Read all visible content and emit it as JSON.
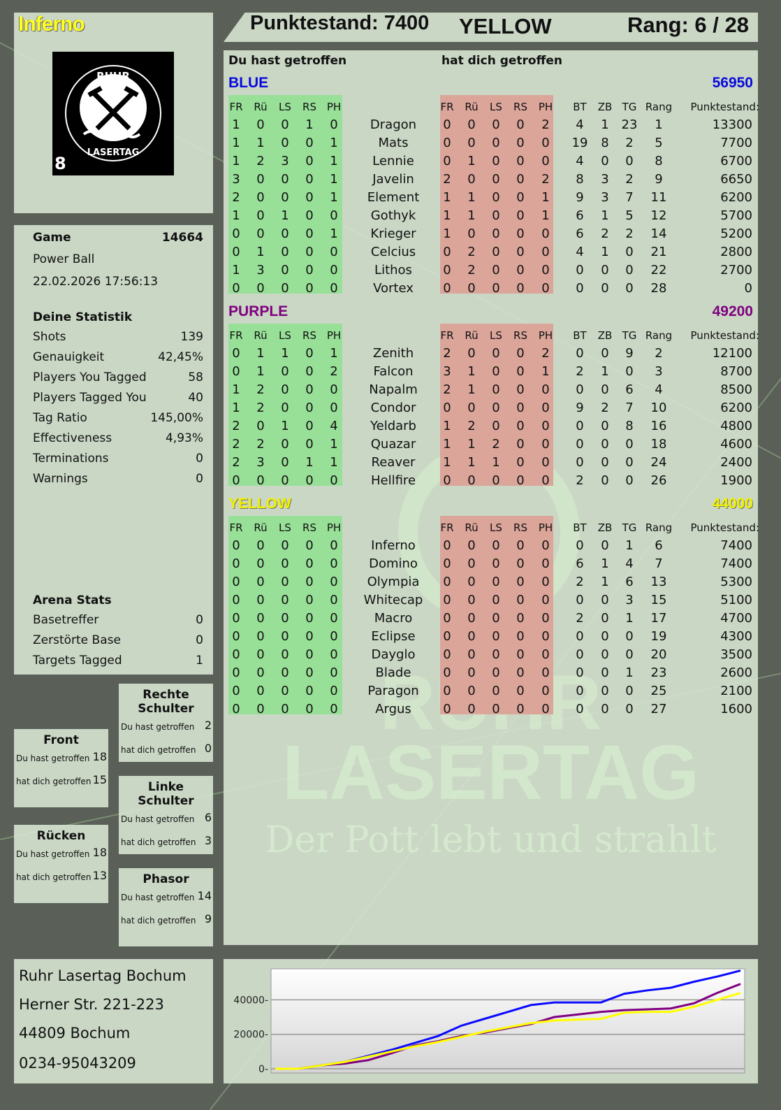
{
  "player": {
    "name": "Inferno",
    "score_label": "Punktestand: 7400",
    "team": "YELLOW",
    "rank_label": "Rang: 6 / 28",
    "logo_text": "RUHR LASERTAG",
    "logo_number": "8"
  },
  "headings": {
    "you_hit": "Du hast getroffen",
    "hit_you": "hat dich getroffen"
  },
  "game": {
    "label": "Game",
    "id": "14664",
    "mode": "Power Ball",
    "datetime": "22.02.2026 17:56:13"
  },
  "stats": {
    "title": "Deine Statistik",
    "items": [
      {
        "label": "Shots",
        "value": "139"
      },
      {
        "label": "Genauigkeit",
        "value": "42,45%"
      },
      {
        "label": "Players You Tagged",
        "value": "58"
      },
      {
        "label": "Players Tagged You",
        "value": "40"
      },
      {
        "label": "Tag Ratio",
        "value": "145,00%"
      },
      {
        "label": "Effectiveness",
        "value": "4,93%"
      },
      {
        "label": "Terminations",
        "value": "0"
      },
      {
        "label": "Warnings",
        "value": "0"
      }
    ]
  },
  "arena": {
    "title": "Arena Stats",
    "items": [
      {
        "label": "Basetreffer",
        "value": "0"
      },
      {
        "label": "Zerstörte Base",
        "value": "0"
      },
      {
        "label": "Targets Tagged",
        "value": "1"
      }
    ]
  },
  "zones": [
    {
      "title": "Rechte Schulter",
      "you_hit": "2",
      "hit_you": "0"
    },
    {
      "title": "Front",
      "you_hit": "18",
      "hit_you": "15"
    },
    {
      "title": "Linke Schulter",
      "you_hit": "6",
      "hit_you": "3"
    },
    {
      "title": "Rücken",
      "you_hit": "18",
      "hit_you": "13"
    },
    {
      "title": "Phasor",
      "you_hit": "14",
      "hit_you": "9"
    }
  ],
  "columns": {
    "hit": [
      "FR",
      "Rü",
      "LS",
      "RS",
      "PH"
    ],
    "extra": [
      "BT",
      "ZB",
      "TG",
      "Rang"
    ],
    "score": "Punktestand:"
  },
  "teams": [
    {
      "name": "BLUE",
      "score": "56950",
      "color": "#0a0adc",
      "players": [
        {
          "n": "Dragon",
          "h": [
            1,
            0,
            0,
            1,
            0
          ],
          "g": [
            0,
            0,
            0,
            0,
            2
          ],
          "x": [
            4,
            1,
            23,
            1
          ],
          "p": 13300
        },
        {
          "n": "Mats",
          "h": [
            1,
            1,
            0,
            0,
            1
          ],
          "g": [
            0,
            0,
            0,
            0,
            0
          ],
          "x": [
            19,
            8,
            2,
            5
          ],
          "p": 7700
        },
        {
          "n": "Lennie",
          "h": [
            1,
            2,
            3,
            0,
            1
          ],
          "g": [
            0,
            1,
            0,
            0,
            0
          ],
          "x": [
            4,
            0,
            0,
            8
          ],
          "p": 6700
        },
        {
          "n": "Javelin",
          "h": [
            3,
            0,
            0,
            0,
            1
          ],
          "g": [
            2,
            0,
            0,
            0,
            2
          ],
          "x": [
            8,
            3,
            2,
            9
          ],
          "p": 6650
        },
        {
          "n": "Element",
          "h": [
            2,
            0,
            0,
            0,
            1
          ],
          "g": [
            1,
            1,
            0,
            0,
            1
          ],
          "x": [
            9,
            3,
            7,
            11
          ],
          "p": 6200
        },
        {
          "n": "Gothyk",
          "h": [
            1,
            0,
            1,
            0,
            0
          ],
          "g": [
            1,
            1,
            0,
            0,
            1
          ],
          "x": [
            6,
            1,
            5,
            12
          ],
          "p": 5700
        },
        {
          "n": "Krieger",
          "h": [
            0,
            0,
            0,
            0,
            1
          ],
          "g": [
            1,
            0,
            0,
            0,
            0
          ],
          "x": [
            6,
            2,
            2,
            14
          ],
          "p": 5200
        },
        {
          "n": "Celcius",
          "h": [
            0,
            1,
            0,
            0,
            0
          ],
          "g": [
            0,
            2,
            0,
            0,
            0
          ],
          "x": [
            4,
            1,
            0,
            21
          ],
          "p": 2800
        },
        {
          "n": "Lithos",
          "h": [
            1,
            3,
            0,
            0,
            0
          ],
          "g": [
            0,
            2,
            0,
            0,
            0
          ],
          "x": [
            0,
            0,
            0,
            22
          ],
          "p": 2700
        },
        {
          "n": "Vortex",
          "h": [
            0,
            0,
            0,
            0,
            0
          ],
          "g": [
            0,
            0,
            0,
            0,
            0
          ],
          "x": [
            0,
            0,
            0,
            28
          ],
          "p": 0
        }
      ]
    },
    {
      "name": "PURPLE",
      "score": "49200",
      "color": "#800080",
      "players": [
        {
          "n": "Zenith",
          "h": [
            0,
            1,
            1,
            0,
            1
          ],
          "g": [
            2,
            0,
            0,
            0,
            2
          ],
          "x": [
            0,
            0,
            9,
            2
          ],
          "p": 12100
        },
        {
          "n": "Falcon",
          "h": [
            0,
            1,
            0,
            0,
            2
          ],
          "g": [
            3,
            1,
            0,
            0,
            1
          ],
          "x": [
            2,
            1,
            0,
            3
          ],
          "p": 8700
        },
        {
          "n": "Napalm",
          "h": [
            1,
            2,
            0,
            0,
            0
          ],
          "g": [
            2,
            1,
            0,
            0,
            0
          ],
          "x": [
            0,
            0,
            6,
            4
          ],
          "p": 8500
        },
        {
          "n": "Condor",
          "h": [
            1,
            2,
            0,
            0,
            0
          ],
          "g": [
            0,
            0,
            0,
            0,
            0
          ],
          "x": [
            9,
            2,
            7,
            10
          ],
          "p": 6200
        },
        {
          "n": "Yeldarb",
          "h": [
            2,
            0,
            1,
            0,
            4
          ],
          "g": [
            1,
            2,
            0,
            0,
            0
          ],
          "x": [
            0,
            0,
            8,
            16
          ],
          "p": 4800
        },
        {
          "n": "Quazar",
          "h": [
            2,
            2,
            0,
            0,
            1
          ],
          "g": [
            1,
            1,
            2,
            0,
            0
          ],
          "x": [
            0,
            0,
            0,
            18
          ],
          "p": 4600
        },
        {
          "n": "Reaver",
          "h": [
            2,
            3,
            0,
            1,
            1
          ],
          "g": [
            1,
            1,
            1,
            0,
            0
          ],
          "x": [
            0,
            0,
            0,
            24
          ],
          "p": 2400
        },
        {
          "n": "Hellfire",
          "h": [
            0,
            0,
            0,
            0,
            0
          ],
          "g": [
            0,
            0,
            0,
            0,
            0
          ],
          "x": [
            2,
            0,
            0,
            26
          ],
          "p": 1900
        }
      ]
    },
    {
      "name": "YELLOW",
      "score": "44000",
      "color": "#f0f000",
      "players": [
        {
          "n": "Inferno",
          "h": [
            0,
            0,
            0,
            0,
            0
          ],
          "g": [
            0,
            0,
            0,
            0,
            0
          ],
          "x": [
            0,
            0,
            1,
            6
          ],
          "p": 7400
        },
        {
          "n": "Domino",
          "h": [
            0,
            0,
            0,
            0,
            0
          ],
          "g": [
            0,
            0,
            0,
            0,
            0
          ],
          "x": [
            6,
            1,
            4,
            7
          ],
          "p": 7400
        },
        {
          "n": "Olympia",
          "h": [
            0,
            0,
            0,
            0,
            0
          ],
          "g": [
            0,
            0,
            0,
            0,
            0
          ],
          "x": [
            2,
            1,
            6,
            13
          ],
          "p": 5300
        },
        {
          "n": "Whitecap",
          "h": [
            0,
            0,
            0,
            0,
            0
          ],
          "g": [
            0,
            0,
            0,
            0,
            0
          ],
          "x": [
            0,
            0,
            3,
            15
          ],
          "p": 5100
        },
        {
          "n": "Macro",
          "h": [
            0,
            0,
            0,
            0,
            0
          ],
          "g": [
            0,
            0,
            0,
            0,
            0
          ],
          "x": [
            2,
            0,
            1,
            17
          ],
          "p": 4700
        },
        {
          "n": "Eclipse",
          "h": [
            0,
            0,
            0,
            0,
            0
          ],
          "g": [
            0,
            0,
            0,
            0,
            0
          ],
          "x": [
            0,
            0,
            0,
            19
          ],
          "p": 4300
        },
        {
          "n": "Dayglo",
          "h": [
            0,
            0,
            0,
            0,
            0
          ],
          "g": [
            0,
            0,
            0,
            0,
            0
          ],
          "x": [
            0,
            0,
            0,
            20
          ],
          "p": 3500
        },
        {
          "n": "Blade",
          "h": [
            0,
            0,
            0,
            0,
            0
          ],
          "g": [
            0,
            0,
            0,
            0,
            0
          ],
          "x": [
            0,
            0,
            1,
            23
          ],
          "p": 2600
        },
        {
          "n": "Paragon",
          "h": [
            0,
            0,
            0,
            0,
            0
          ],
          "g": [
            0,
            0,
            0,
            0,
            0
          ],
          "x": [
            0,
            0,
            0,
            25
          ],
          "p": 2100
        },
        {
          "n": "Argus",
          "h": [
            0,
            0,
            0,
            0,
            0
          ],
          "g": [
            0,
            0,
            0,
            0,
            0
          ],
          "x": [
            0,
            0,
            0,
            27
          ],
          "p": 1600
        }
      ]
    }
  ],
  "watermark": {
    "line1": "RUHR",
    "line2": "LASERTAG",
    "slogan": "Der Pott lebt und strahlt"
  },
  "address": {
    "name": "Ruhr Lasertag Bochum",
    "street": "Herner Str. 221-223",
    "city": "44809 Bochum",
    "phone": "0234-95043209"
  },
  "chart_data": {
    "type": "line",
    "ylim": [
      0,
      58000
    ],
    "yticks": [
      0,
      20000,
      40000
    ],
    "grid": true,
    "series": [
      {
        "color": "#0a0aff",
        "values": [
          0,
          0,
          2000,
          4000,
          7500,
          11000,
          15000,
          19000,
          25000,
          29000,
          33000,
          37000,
          38500,
          38500,
          38500,
          43500,
          45500,
          47000,
          50500,
          53500,
          56950
        ]
      },
      {
        "color": "#800080",
        "values": [
          0,
          0,
          2000,
          3000,
          5000,
          9000,
          13500,
          16000,
          19000,
          21000,
          23500,
          26000,
          30000,
          31500,
          33000,
          34000,
          34500,
          35000,
          38000,
          44000,
          49200
        ]
      },
      {
        "color": "#ffff00",
        "values": [
          0,
          0,
          2000,
          4000,
          7000,
          10000,
          13000,
          15500,
          18500,
          21500,
          24000,
          26500,
          28000,
          28500,
          29000,
          32500,
          33000,
          33000,
          36000,
          40000,
          44000
        ]
      }
    ]
  }
}
